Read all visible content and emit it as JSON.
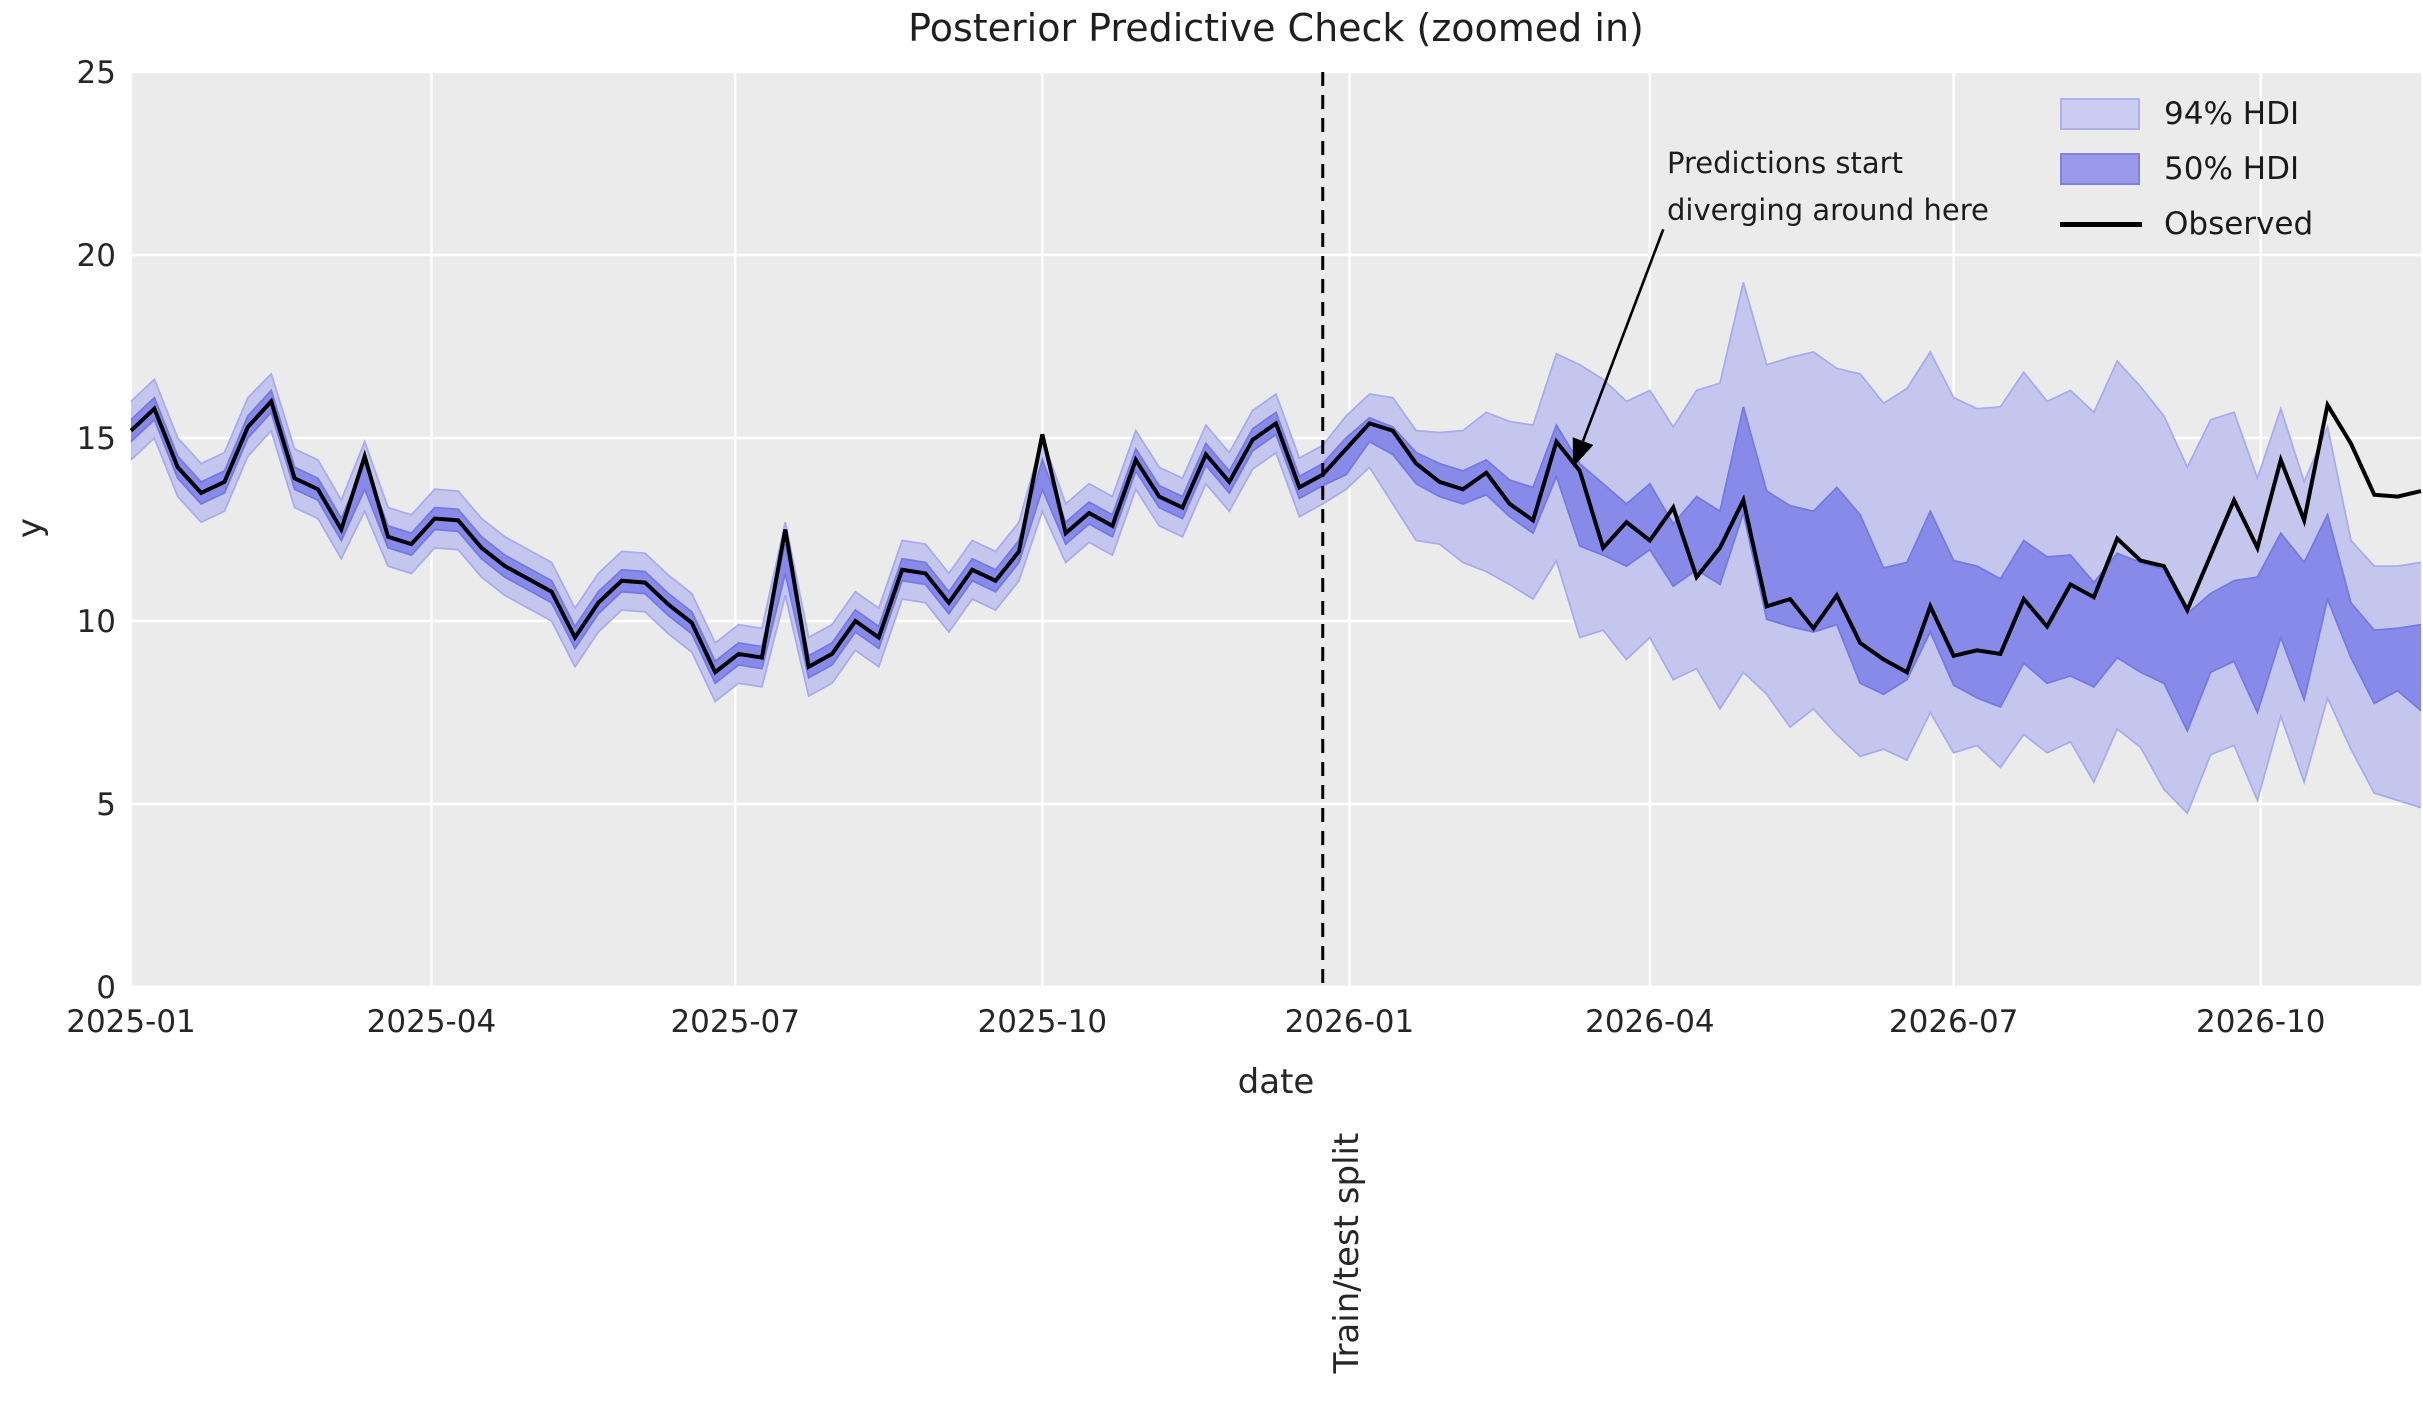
{
  "chart_data": {
    "type": "line",
    "title": "Posterior Predictive Check (zoomed in)",
    "xlabel": "date",
    "ylabel": "y",
    "x_axis": {
      "min_date": "2025-01-01",
      "max_date": "2026-11-18",
      "ticks": [
        {
          "label": "2025-01",
          "date": "2025-01-01"
        },
        {
          "label": "2025-04",
          "date": "2025-04-01"
        },
        {
          "label": "2025-07",
          "date": "2025-07-01"
        },
        {
          "label": "2025-10",
          "date": "2025-10-01"
        },
        {
          "label": "2026-01",
          "date": "2026-01-01"
        },
        {
          "label": "2026-04",
          "date": "2026-04-01"
        },
        {
          "label": "2026-07",
          "date": "2026-07-01"
        },
        {
          "label": "2026-10",
          "date": "2026-10-01"
        }
      ]
    },
    "y_axis": {
      "min": 0,
      "max": 25,
      "ticks": [
        0,
        5,
        10,
        15,
        20,
        25
      ]
    },
    "series_start_date": "2025-01-01",
    "freq_days": 7,
    "split_line": {
      "date": "2025-12-24",
      "label": "Train/test split"
    },
    "annotation": {
      "text": "Predictions start\ndiverging around here",
      "target_date": "2026-03-09",
      "target_value": 14.2,
      "arrow_start_date": "2026-04-05",
      "arrow_start_value": 20.7
    },
    "legend": [
      {
        "label": "94% HDI",
        "type": "patch"
      },
      {
        "label": "50% HDI",
        "type": "patch"
      },
      {
        "label": "Observed",
        "type": "line"
      }
    ],
    "series": {
      "observed": [
        15.2,
        15.8,
        14.2,
        13.5,
        13.8,
        15.3,
        16.0,
        13.9,
        13.6,
        12.5,
        14.5,
        12.3,
        12.1,
        12.8,
        12.75,
        12.0,
        11.5,
        11.15,
        10.8,
        9.55,
        10.5,
        11.1,
        11.05,
        10.45,
        9.95,
        8.6,
        9.1,
        9.0,
        12.5,
        8.75,
        9.1,
        10.0,
        9.55,
        11.4,
        11.3,
        10.5,
        11.4,
        11.1,
        11.9,
        15.1,
        12.4,
        12.95,
        12.6,
        14.4,
        13.4,
        13.1,
        14.55,
        13.8,
        14.95,
        15.4,
        13.65,
        14.0,
        14.7,
        15.4,
        15.2,
        14.3,
        13.8,
        13.6,
        14.05,
        13.2,
        12.75,
        14.9,
        14.1,
        12.0,
        12.7,
        12.2,
        13.1,
        11.2,
        12.0,
        13.3,
        10.4,
        10.6,
        9.8,
        10.7,
        9.4,
        8.95,
        8.6,
        10.4,
        9.05,
        9.2,
        9.1,
        10.6,
        9.85,
        11.0,
        10.65,
        12.25,
        11.65,
        11.5,
        10.3,
        11.8,
        13.3,
        12.0,
        14.4,
        12.75,
        15.9,
        14.85,
        13.45,
        13.4,
        13.55
      ],
      "hdi50_high": [
        15.5,
        16.1,
        14.5,
        13.8,
        14.1,
        15.6,
        16.3,
        14.2,
        13.9,
        12.8,
        14.3,
        12.6,
        12.4,
        13.1,
        13.05,
        12.3,
        11.8,
        11.45,
        11.1,
        9.85,
        10.8,
        11.4,
        11.35,
        10.75,
        10.25,
        8.9,
        9.4,
        9.3,
        12.1,
        9.05,
        9.4,
        10.3,
        9.85,
        11.7,
        11.6,
        10.8,
        11.7,
        11.4,
        12.2,
        14.4,
        12.7,
        13.25,
        12.9,
        14.7,
        13.7,
        13.4,
        14.85,
        14.1,
        15.25,
        15.7,
        13.95,
        14.3,
        15.0,
        15.55,
        15.3,
        14.6,
        14.3,
        14.1,
        14.4,
        13.85,
        13.65,
        15.35,
        14.3,
        13.75,
        13.2,
        13.75,
        12.65,
        13.4,
        13.0,
        15.85,
        13.55,
        13.15,
        13.0,
        13.65,
        12.9,
        11.45,
        11.6,
        13.0,
        11.65,
        11.5,
        11.15,
        12.2,
        11.75,
        11.8,
        11.05,
        11.85,
        11.6,
        11.4,
        10.2,
        10.75,
        11.1,
        11.2,
        12.4,
        11.6,
        12.9,
        10.5,
        9.75,
        9.8,
        9.9
      ],
      "hdi50_low": [
        14.9,
        15.5,
        13.9,
        13.2,
        13.5,
        15.0,
        15.7,
        13.6,
        13.3,
        12.2,
        13.6,
        12.0,
        11.8,
        12.5,
        12.45,
        11.7,
        11.2,
        10.85,
        10.5,
        9.25,
        10.2,
        10.8,
        10.75,
        10.15,
        9.65,
        8.3,
        8.8,
        8.7,
        11.3,
        8.45,
        8.8,
        9.7,
        9.25,
        11.1,
        11.0,
        10.2,
        11.1,
        10.8,
        11.6,
        13.6,
        12.1,
        12.65,
        12.3,
        14.1,
        13.1,
        12.8,
        14.25,
        13.5,
        14.65,
        15.1,
        13.35,
        13.7,
        14.0,
        14.9,
        14.55,
        13.75,
        13.4,
        13.2,
        13.45,
        12.85,
        12.4,
        13.95,
        12.05,
        11.8,
        11.5,
        11.95,
        10.95,
        11.4,
        11.0,
        12.95,
        10.05,
        9.85,
        9.7,
        9.9,
        8.3,
        8.0,
        8.4,
        9.7,
        8.25,
        7.9,
        7.65,
        8.85,
        8.3,
        8.5,
        8.2,
        9.0,
        8.6,
        8.3,
        7.0,
        8.6,
        8.9,
        7.5,
        9.55,
        7.85,
        10.6,
        9.0,
        7.75,
        8.1,
        7.55
      ],
      "hdi94_high": [
        16.0,
        16.6,
        15.0,
        14.3,
        14.6,
        16.1,
        16.75,
        14.7,
        14.4,
        13.3,
        14.9,
        13.1,
        12.9,
        13.6,
        13.55,
        12.8,
        12.3,
        11.95,
        11.6,
        10.35,
        11.3,
        11.9,
        11.85,
        11.25,
        10.75,
        9.4,
        9.9,
        9.8,
        12.7,
        9.55,
        9.9,
        10.8,
        10.35,
        12.2,
        12.1,
        11.3,
        12.2,
        11.9,
        12.7,
        15.0,
        13.2,
        13.75,
        13.4,
        15.2,
        14.2,
        13.9,
        15.35,
        14.6,
        15.75,
        16.2,
        14.45,
        14.8,
        15.6,
        16.2,
        16.1,
        15.2,
        15.15,
        15.2,
        15.7,
        15.45,
        15.35,
        17.3,
        17.0,
        16.6,
        16.0,
        16.3,
        15.3,
        16.3,
        16.5,
        19.25,
        17.0,
        17.2,
        17.35,
        16.9,
        16.75,
        15.95,
        16.35,
        17.35,
        16.1,
        15.8,
        15.85,
        16.8,
        16.0,
        16.3,
        15.7,
        17.1,
        16.4,
        15.6,
        14.2,
        15.5,
        15.7,
        13.9,
        15.8,
        13.8,
        15.3,
        12.2,
        11.5,
        11.5,
        11.6
      ],
      "hdi94_low": [
        14.4,
        15.0,
        13.4,
        12.7,
        13.0,
        14.5,
        15.2,
        13.1,
        12.8,
        11.7,
        13.0,
        11.5,
        11.3,
        12.0,
        11.95,
        11.2,
        10.7,
        10.35,
        10.0,
        8.75,
        9.7,
        10.3,
        10.25,
        9.65,
        9.15,
        7.8,
        8.3,
        8.2,
        10.7,
        7.95,
        8.3,
        9.2,
        8.75,
        10.6,
        10.5,
        9.7,
        10.6,
        10.3,
        11.1,
        13.0,
        11.6,
        12.15,
        11.8,
        13.6,
        12.6,
        12.3,
        13.75,
        13.0,
        14.15,
        14.6,
        12.85,
        13.2,
        13.6,
        14.2,
        13.2,
        12.2,
        12.1,
        11.6,
        11.35,
        11.0,
        10.6,
        11.65,
        9.55,
        9.75,
        8.95,
        9.55,
        8.4,
        8.7,
        7.6,
        8.6,
        8.0,
        7.1,
        7.6,
        6.9,
        6.3,
        6.5,
        6.2,
        7.5,
        6.4,
        6.6,
        6.0,
        6.9,
        6.4,
        6.7,
        5.6,
        7.05,
        6.55,
        5.4,
        4.75,
        6.35,
        6.6,
        5.1,
        7.4,
        5.6,
        7.9,
        6.5,
        5.3,
        5.1,
        4.9
      ]
    },
    "colors": {
      "plot_bg": "#ebebeb",
      "grid": "#ffffff",
      "hdi94_fill": "#c5c6ee",
      "hdi94_edge": "#a9abf0",
      "hdi50_fill": "#878ae8",
      "hdi50_edge": "#7579e3",
      "observed": "#000000",
      "split": "#000000",
      "text": "#262626",
      "legend94_fill": "#cbccf2",
      "legend94_edge": "#aeb0f2",
      "legend50_fill": "#989ae9",
      "legend50_edge": "#7e81e8"
    }
  }
}
